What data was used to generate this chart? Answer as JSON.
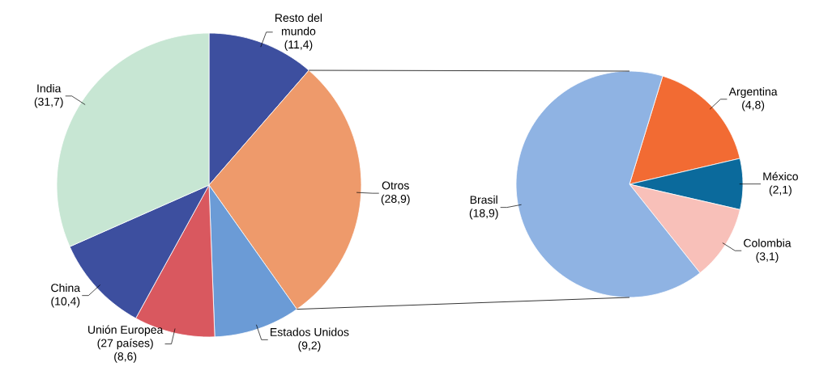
{
  "chart_data": [
    {
      "type": "pie",
      "categories": [
        "Resto del mundo",
        "Otros",
        "Estados Unidos",
        "Unión Europea (27 países)",
        "China",
        "India"
      ],
      "values": [
        11.4,
        28.9,
        9.2,
        8.6,
        10.4,
        31.7
      ],
      "value_labels": [
        "(11,4)",
        "(28,9)",
        "(9,2)",
        "(8,6)",
        "(10,4)",
        "(31,7)"
      ],
      "colors": [
        "#3d4f9f",
        "#ee9a6b",
        "#6b9bd6",
        "#d9585f",
        "#3d4f9f",
        "#c7e6d3"
      ]
    },
    {
      "type": "pie",
      "categories": [
        "Argentina",
        "México",
        "Colombia",
        "Brasil"
      ],
      "values": [
        4.8,
        2.1,
        3.1,
        18.9
      ],
      "value_labels": [
        "(4,8)",
        "(2,1)",
        "(3,1)",
        "(18,9)"
      ],
      "colors": [
        "#f26b33",
        "#0b6a9c",
        "#f8c0b9",
        "#8fb3e3"
      ]
    }
  ]
}
